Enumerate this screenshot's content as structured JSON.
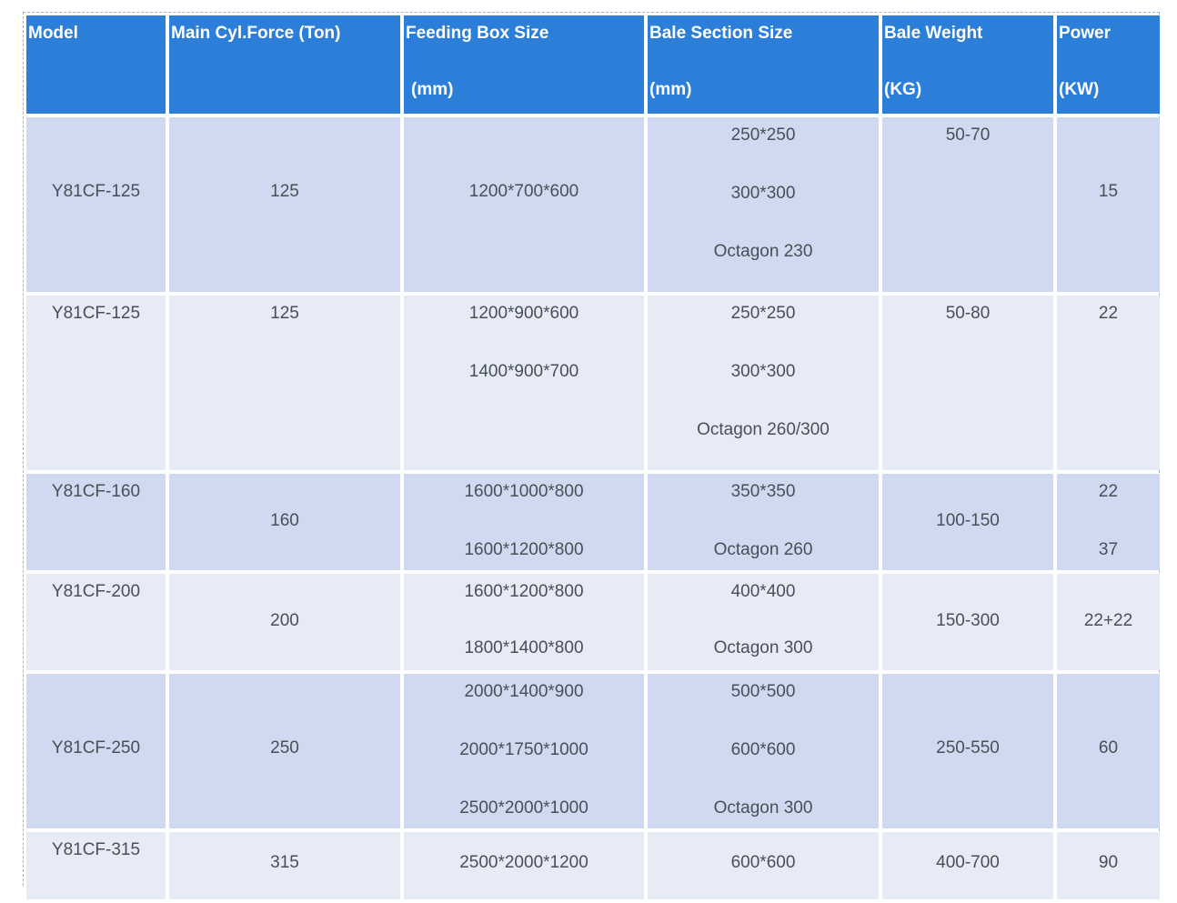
{
  "headers": [
    {
      "line1": "Model",
      "line2": ""
    },
    {
      "line1": "Main Cyl.Force  (Ton)",
      "line2": ""
    },
    {
      "line1": "Feeding Box Size",
      "line2": "(mm)"
    },
    {
      "line1": "Bale Section Size",
      "line2": "(mm)"
    },
    {
      "line1": "Bale Weight",
      "line2": "(KG)"
    },
    {
      "line1": "Power",
      "line2": "(KW)"
    }
  ],
  "rows": [
    {
      "model": "Y81CF-125",
      "force": "125",
      "feeding": [
        "1200*700*600"
      ],
      "section": [
        "250*250",
        "300*300",
        "Octagon 230"
      ],
      "weight": "50-70",
      "power": [
        "15"
      ]
    },
    {
      "model": "Y81CF-125",
      "force": "125",
      "feeding": [
        "1200*900*600",
        "1400*900*700"
      ],
      "section": [
        "250*250",
        "300*300",
        "Octagon 260/300"
      ],
      "weight": "50-80",
      "power": [
        "22"
      ]
    },
    {
      "model": "Y81CF-160",
      "force": "160",
      "feeding": [
        "1600*1000*800",
        "1600*1200*800"
      ],
      "section": [
        "350*350",
        "Octagon 260"
      ],
      "weight": "100-150",
      "power": [
        "22",
        "37"
      ]
    },
    {
      "model": "Y81CF-200",
      "force": "200",
      "feeding": [
        "1600*1200*800",
        "1800*1400*800"
      ],
      "section": [
        "400*400",
        "Octagon 300"
      ],
      "weight": "150-300",
      "power": [
        "22+22"
      ]
    },
    {
      "model": "Y81CF-250",
      "force": "250",
      "feeding": [
        "2000*1400*900",
        "2000*1750*1000",
        "2500*2000*1000"
      ],
      "section": [
        "500*500",
        "600*600",
        "Octagon 300"
      ],
      "weight": "250-550",
      "power": [
        "60"
      ]
    },
    {
      "model": "Y81CF-315",
      "force": "315",
      "feeding": [
        "2500*2000*1200"
      ],
      "section": [
        "600*600"
      ],
      "weight": "400-700",
      "power": [
        "90"
      ]
    }
  ]
}
